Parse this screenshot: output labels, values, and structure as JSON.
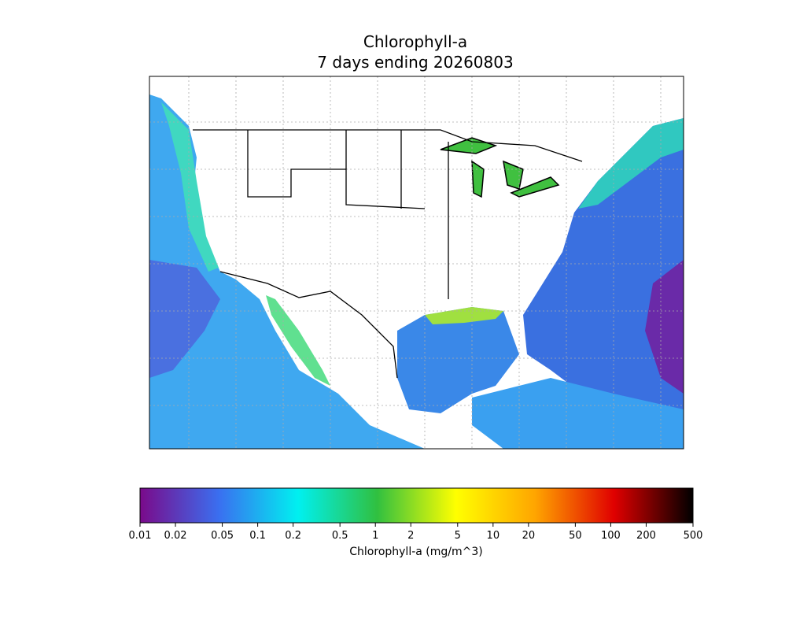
{
  "chart_data": {
    "type": "map",
    "title": "Chlorophyll-a",
    "subtitle": "7 days ending 20260803",
    "colorbar": {
      "label": "Chlorophyll-a (mg/m^3)",
      "log": true,
      "lim": [
        0.01,
        500
      ],
      "ticks": [
        0.01,
        0.02,
        0.05,
        0.1,
        0.2,
        0.5,
        1,
        2,
        5,
        10,
        20,
        50,
        100,
        200,
        500
      ],
      "colormap": [
        "#7a0a8a",
        "#3a6ff0",
        "#00f0f0",
        "#30c040",
        "#ffff00",
        "#ffa500",
        "#e00000",
        "#000000"
      ]
    }
  }
}
